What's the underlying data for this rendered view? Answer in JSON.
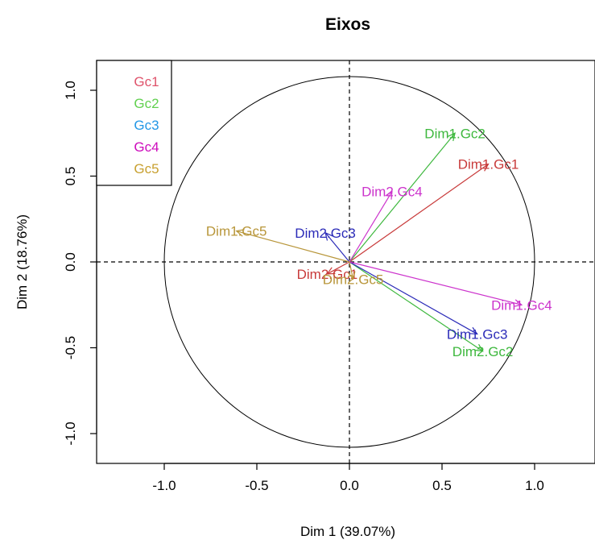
{
  "chart_data": {
    "type": "scatter",
    "title": "Eixos",
    "xlabel": "Dim 1 (39.07%)",
    "ylabel": "Dim 2 (18.76%)",
    "xlim": [
      -1.4,
      1.4
    ],
    "ylim": [
      -1.2,
      1.2
    ],
    "x_ticks": [
      -1.0,
      -0.5,
      0.0,
      0.5,
      1.0
    ],
    "y_ticks": [
      -1.0,
      -0.5,
      0.0,
      0.5,
      1.0
    ],
    "x_tick_labels": [
      "-1.0",
      "-0.5",
      "0.0",
      "0.5",
      "1.0"
    ],
    "y_tick_labels": [
      "-1.0",
      "-0.5",
      "0.0",
      "0.5",
      "1.0"
    ],
    "reference_lines": {
      "x": 0,
      "y": 0,
      "style": "dashed"
    },
    "unit_circle": true,
    "legend": {
      "placement": "top-left",
      "entries": [
        {
          "name": "Gc1",
          "color": "#DF536B"
        },
        {
          "name": "Gc2",
          "color": "#61D04F"
        },
        {
          "name": "Gc3",
          "color": "#2297E6"
        },
        {
          "name": "Gc4",
          "color": "#CD0BBC"
        },
        {
          "name": "Gc5",
          "color": "#C8A030"
        }
      ]
    },
    "vectors": [
      {
        "label": "Dim1.Gc1",
        "group": "Gc1",
        "color": "#C83A3A",
        "x": 0.75,
        "y": 0.57
      },
      {
        "label": "Dim2.Gc1",
        "group": "Gc1",
        "color": "#C83A3A",
        "x": -0.12,
        "y": -0.07
      },
      {
        "label": "Dim1.Gc2",
        "group": "Gc2",
        "color": "#3EB83E",
        "x": 0.57,
        "y": 0.75
      },
      {
        "label": "Dim2.Gc2",
        "group": "Gc2",
        "color": "#3EB83E",
        "x": 0.72,
        "y": -0.52
      },
      {
        "label": "Dim1.Gc3",
        "group": "Gc3",
        "color": "#2B2BB8",
        "x": 0.69,
        "y": -0.42
      },
      {
        "label": "Dim2.Gc3",
        "group": "Gc3",
        "color": "#2B2BB8",
        "x": -0.13,
        "y": 0.17
      },
      {
        "label": "Dim1.Gc4",
        "group": "Gc4",
        "color": "#CC33CC",
        "x": 0.93,
        "y": -0.25
      },
      {
        "label": "Dim2.Gc4",
        "group": "Gc4",
        "color": "#CC33CC",
        "x": 0.23,
        "y": 0.41
      },
      {
        "label": "Dim1.Gc5",
        "group": "Gc5",
        "color": "#B8963A",
        "x": -0.61,
        "y": 0.18
      },
      {
        "label": "Dim2.Gc5",
        "group": "Gc5",
        "color": "#B8963A",
        "x": 0.02,
        "y": -0.1
      }
    ]
  }
}
